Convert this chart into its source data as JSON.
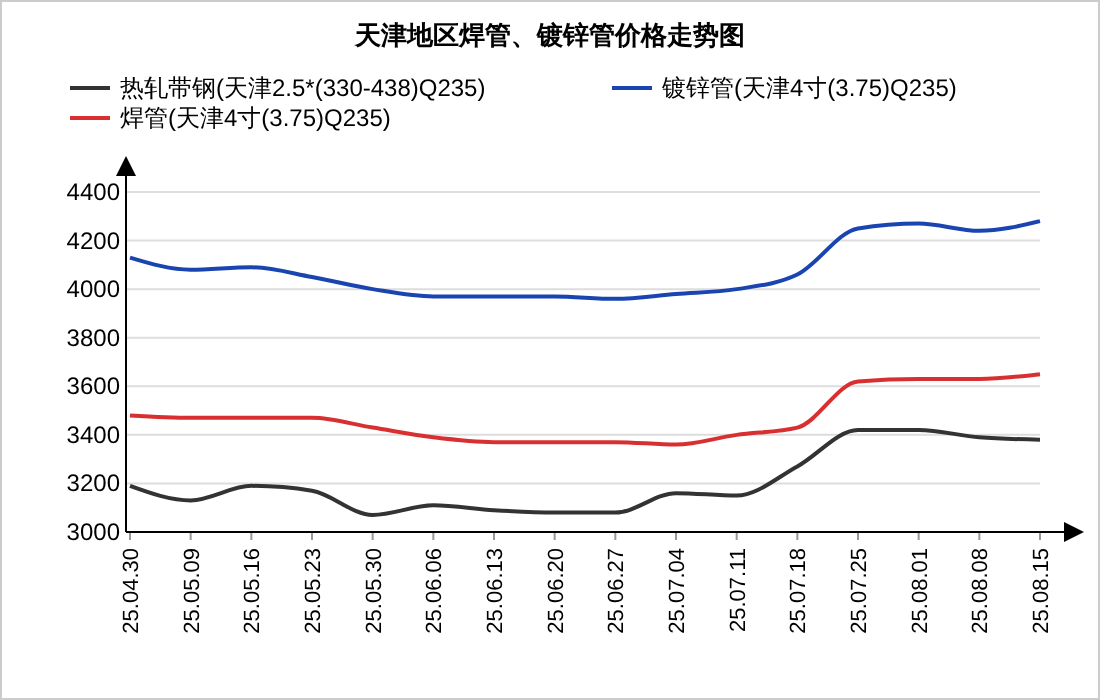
{
  "chart_data": {
    "type": "line",
    "title": "天津地区焊管、镀锌管价格走势图",
    "categories": [
      "25.04.30",
      "25.05.09",
      "25.05.16",
      "25.05.23",
      "25.05.30",
      "25.06.06",
      "25.06.13",
      "25.06.20",
      "25.06.27",
      "25.07.04",
      "25.07.11",
      "25.07.18",
      "25.07.25",
      "25.08.01",
      "25.08.08",
      "25.08.15"
    ],
    "series": [
      {
        "name": "热轧带钢(天津2.5*(330-438)Q235)",
        "color": "#333333",
        "values": [
          3190,
          3130,
          3190,
          3170,
          3070,
          3110,
          3090,
          3080,
          3080,
          3160,
          3150,
          3270,
          3420,
          3420,
          3390,
          3380
        ]
      },
      {
        "name": "镀锌管(天津4寸(3.75)Q235)",
        "color": "#1a44b0",
        "values": [
          4130,
          4080,
          4090,
          4050,
          4000,
          3970,
          3970,
          3970,
          3960,
          3980,
          4000,
          4060,
          4250,
          4270,
          4240,
          4280
        ]
      },
      {
        "name": "焊管(天津4寸(3.75)Q235)",
        "color": "#d83030",
        "values": [
          3480,
          3470,
          3470,
          3470,
          3430,
          3390,
          3370,
          3370,
          3370,
          3360,
          3400,
          3430,
          3620,
          3630,
          3630,
          3650
        ]
      }
    ],
    "ylim": [
      3000,
      4400
    ],
    "yticks": [
      3000,
      3200,
      3400,
      3600,
      3800,
      4000,
      4200,
      4400
    ],
    "grid": "y",
    "legend": "top",
    "marker": "none",
    "line_style": "solid"
  }
}
